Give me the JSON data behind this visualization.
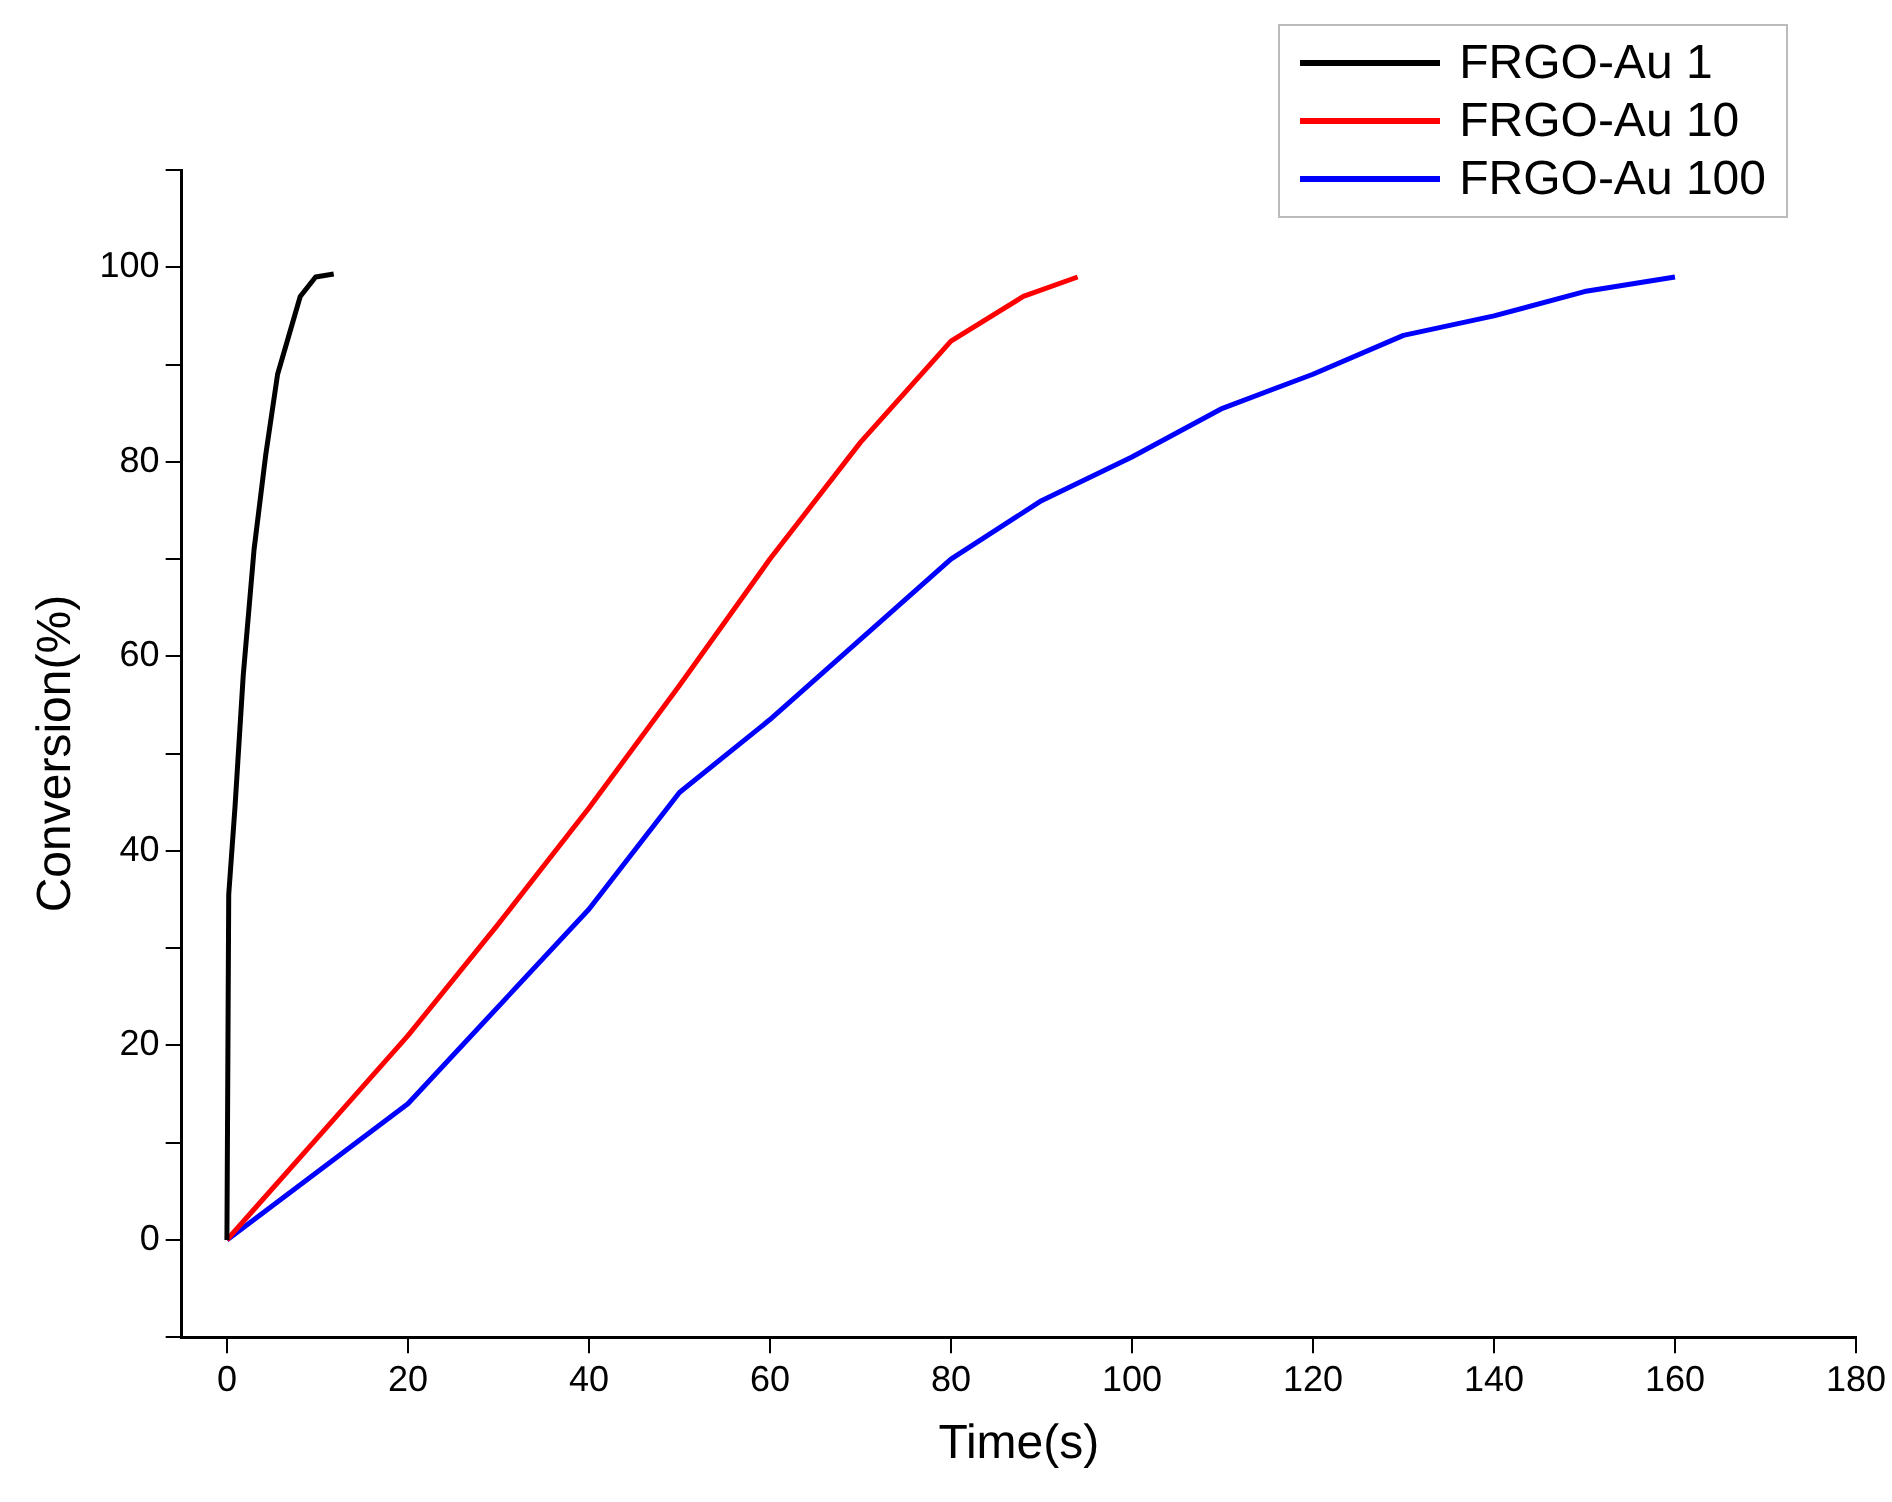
{
  "chart_data": {
    "type": "line",
    "xlabel": "Time(s)",
    "ylabel": "Conversion(%)",
    "xlim": [
      -5,
      180
    ],
    "xticks": [
      0,
      20,
      40,
      60,
      80,
      100,
      120,
      140,
      160,
      180
    ],
    "ylim": [
      -10,
      110
    ],
    "yticks": [
      {
        "value": -10,
        "label": null
      },
      0,
      {
        "value": 10,
        "label": null
      },
      20,
      {
        "value": 30,
        "label": null
      },
      40,
      {
        "value": 50,
        "label": null
      },
      60,
      {
        "value": 70,
        "label": null
      },
      80,
      {
        "value": 90,
        "label": null
      },
      100,
      {
        "value": 110,
        "label": null
      }
    ],
    "grid": false,
    "legend": "top right",
    "marker": "none",
    "line_style": "solid",
    "series": [
      {
        "name": "FRGO-Au 1",
        "color": "#000000",
        "x": [
          0,
          0.2,
          0.9,
          1.8,
          3,
          4.3,
          5.6,
          8.1,
          9.8,
          11.8
        ],
        "values": [
          0,
          35.5,
          44.6,
          58,
          71,
          80.8,
          89,
          97,
          99,
          99.3
        ]
      },
      {
        "name": "FRGO-Au 10",
        "color": "#ff0000",
        "x": [
          0,
          10,
          20,
          30,
          40,
          50,
          60,
          70,
          80,
          88,
          94
        ],
        "values": [
          0,
          10.5,
          21,
          32.5,
          44.4,
          57,
          70,
          82,
          92.4,
          97,
          99
        ]
      },
      {
        "name": "FRGO-Au 100",
        "color": "#0000ff",
        "x": [
          0,
          20,
          40,
          50,
          60,
          80,
          90,
          100,
          110,
          120,
          130,
          140,
          150,
          160
        ],
        "values": [
          0,
          14,
          34,
          46,
          53.5,
          70,
          76,
          80.5,
          85.5,
          89,
          93,
          95,
          97.5,
          99
        ]
      }
    ]
  }
}
